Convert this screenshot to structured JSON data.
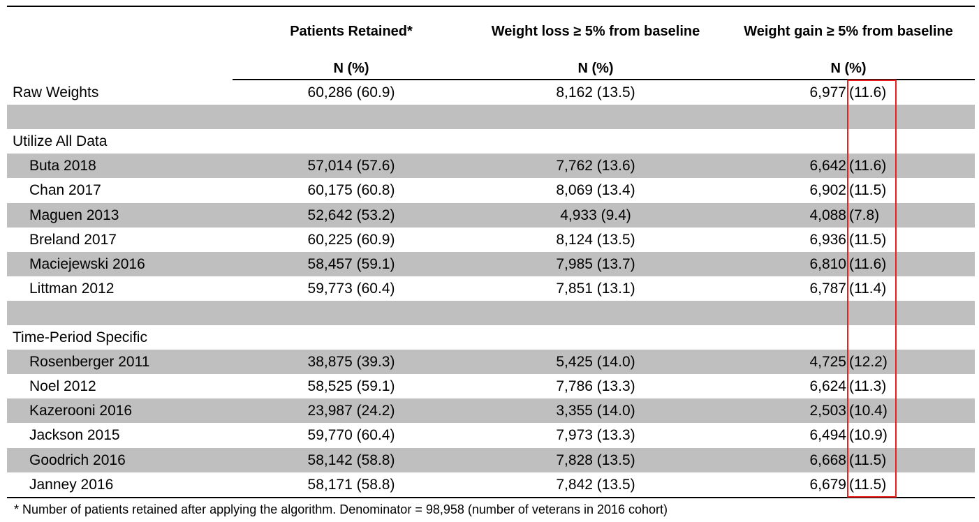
{
  "headers": {
    "col1_title": "Patients Retained*",
    "col2_title": "Weight loss ≥ 5% from baseline",
    "col3_title": "Weight gain ≥ 5% from baseline",
    "col1_unit": "N (%)",
    "col2_unit": "N (%)",
    "col3_unit": "N (%)"
  },
  "rows": [
    {
      "label": "Raw Weights",
      "retained": "60,286 (60.9)",
      "loss": "8,162 (13.5)",
      "gain_n": "6,977",
      "gain_pct": "(11.6)"
    },
    {
      "label": "",
      "retained": "",
      "loss": "",
      "gain_n": "",
      "gain_pct": ""
    },
    {
      "label": "Utilize All Data",
      "retained": "",
      "loss": "",
      "gain_n": "",
      "gain_pct": ""
    },
    {
      "label": "Buta 2018",
      "retained": "57,014 (57.6)",
      "loss": "7,762 (13.6)",
      "gain_n": "6,642",
      "gain_pct": "(11.6)"
    },
    {
      "label": "Chan 2017",
      "retained": "60,175 (60.8)",
      "loss": "8,069 (13.4)",
      "gain_n": "6,902",
      "gain_pct": "(11.5)"
    },
    {
      "label": "Maguen 2013",
      "retained": "52,642 (53.2)",
      "loss": "4,933 (9.4)",
      "gain_n": "4,088",
      "gain_pct": "(7.8)"
    },
    {
      "label": "Breland 2017",
      "retained": "60,225 (60.9)",
      "loss": "8,124 (13.5)",
      "gain_n": "6,936",
      "gain_pct": "(11.5)"
    },
    {
      "label": "Maciejewski 2016",
      "retained": "58,457 (59.1)",
      "loss": "7,985 (13.7)",
      "gain_n": "6,810",
      "gain_pct": "(11.6)"
    },
    {
      "label": "Littman 2012",
      "retained": "59,773 (60.4)",
      "loss": "7,851 (13.1)",
      "gain_n": "6,787",
      "gain_pct": "(11.4)"
    },
    {
      "label": "",
      "retained": "",
      "loss": "",
      "gain_n": "",
      "gain_pct": ""
    },
    {
      "label": "Time-Period Specific",
      "retained": "",
      "loss": "",
      "gain_n": "",
      "gain_pct": ""
    },
    {
      "label": "Rosenberger 2011",
      "retained": "38,875 (39.3)",
      "loss": "5,425 (14.0)",
      "gain_n": "4,725",
      "gain_pct": "(12.2)"
    },
    {
      "label": "Noel 2012",
      "retained": "58,525 (59.1)",
      "loss": "7,786 (13.3)",
      "gain_n": "6,624",
      "gain_pct": "(11.3)"
    },
    {
      "label": "Kazerooni 2016",
      "retained": "23,987 (24.2)",
      "loss": "3,355 (14.0)",
      "gain_n": "2,503",
      "gain_pct": "(10.4)"
    },
    {
      "label": "Jackson 2015",
      "retained": "59,770 (60.4)",
      "loss": "7,973 (13.3)",
      "gain_n": "6,494",
      "gain_pct": "(10.9)"
    },
    {
      "label": "Goodrich 2016",
      "retained": "58,142 (58.8)",
      "loss": "7,828 (13.5)",
      "gain_n": "6,668",
      "gain_pct": "(11.5)"
    },
    {
      "label": "Janney 2016",
      "retained": "58,171 (58.8)",
      "loss": "7,842 (13.5)",
      "gain_n": "6,679",
      "gain_pct": "(11.5)"
    }
  ],
  "footnote": "* Number of patients retained after applying the algorithm. Denominator = 98,958 (number of veterans in 2016 cohort)",
  "colors": {
    "row_shade": "#bfbfbf",
    "highlight_box": "#e8211f"
  }
}
